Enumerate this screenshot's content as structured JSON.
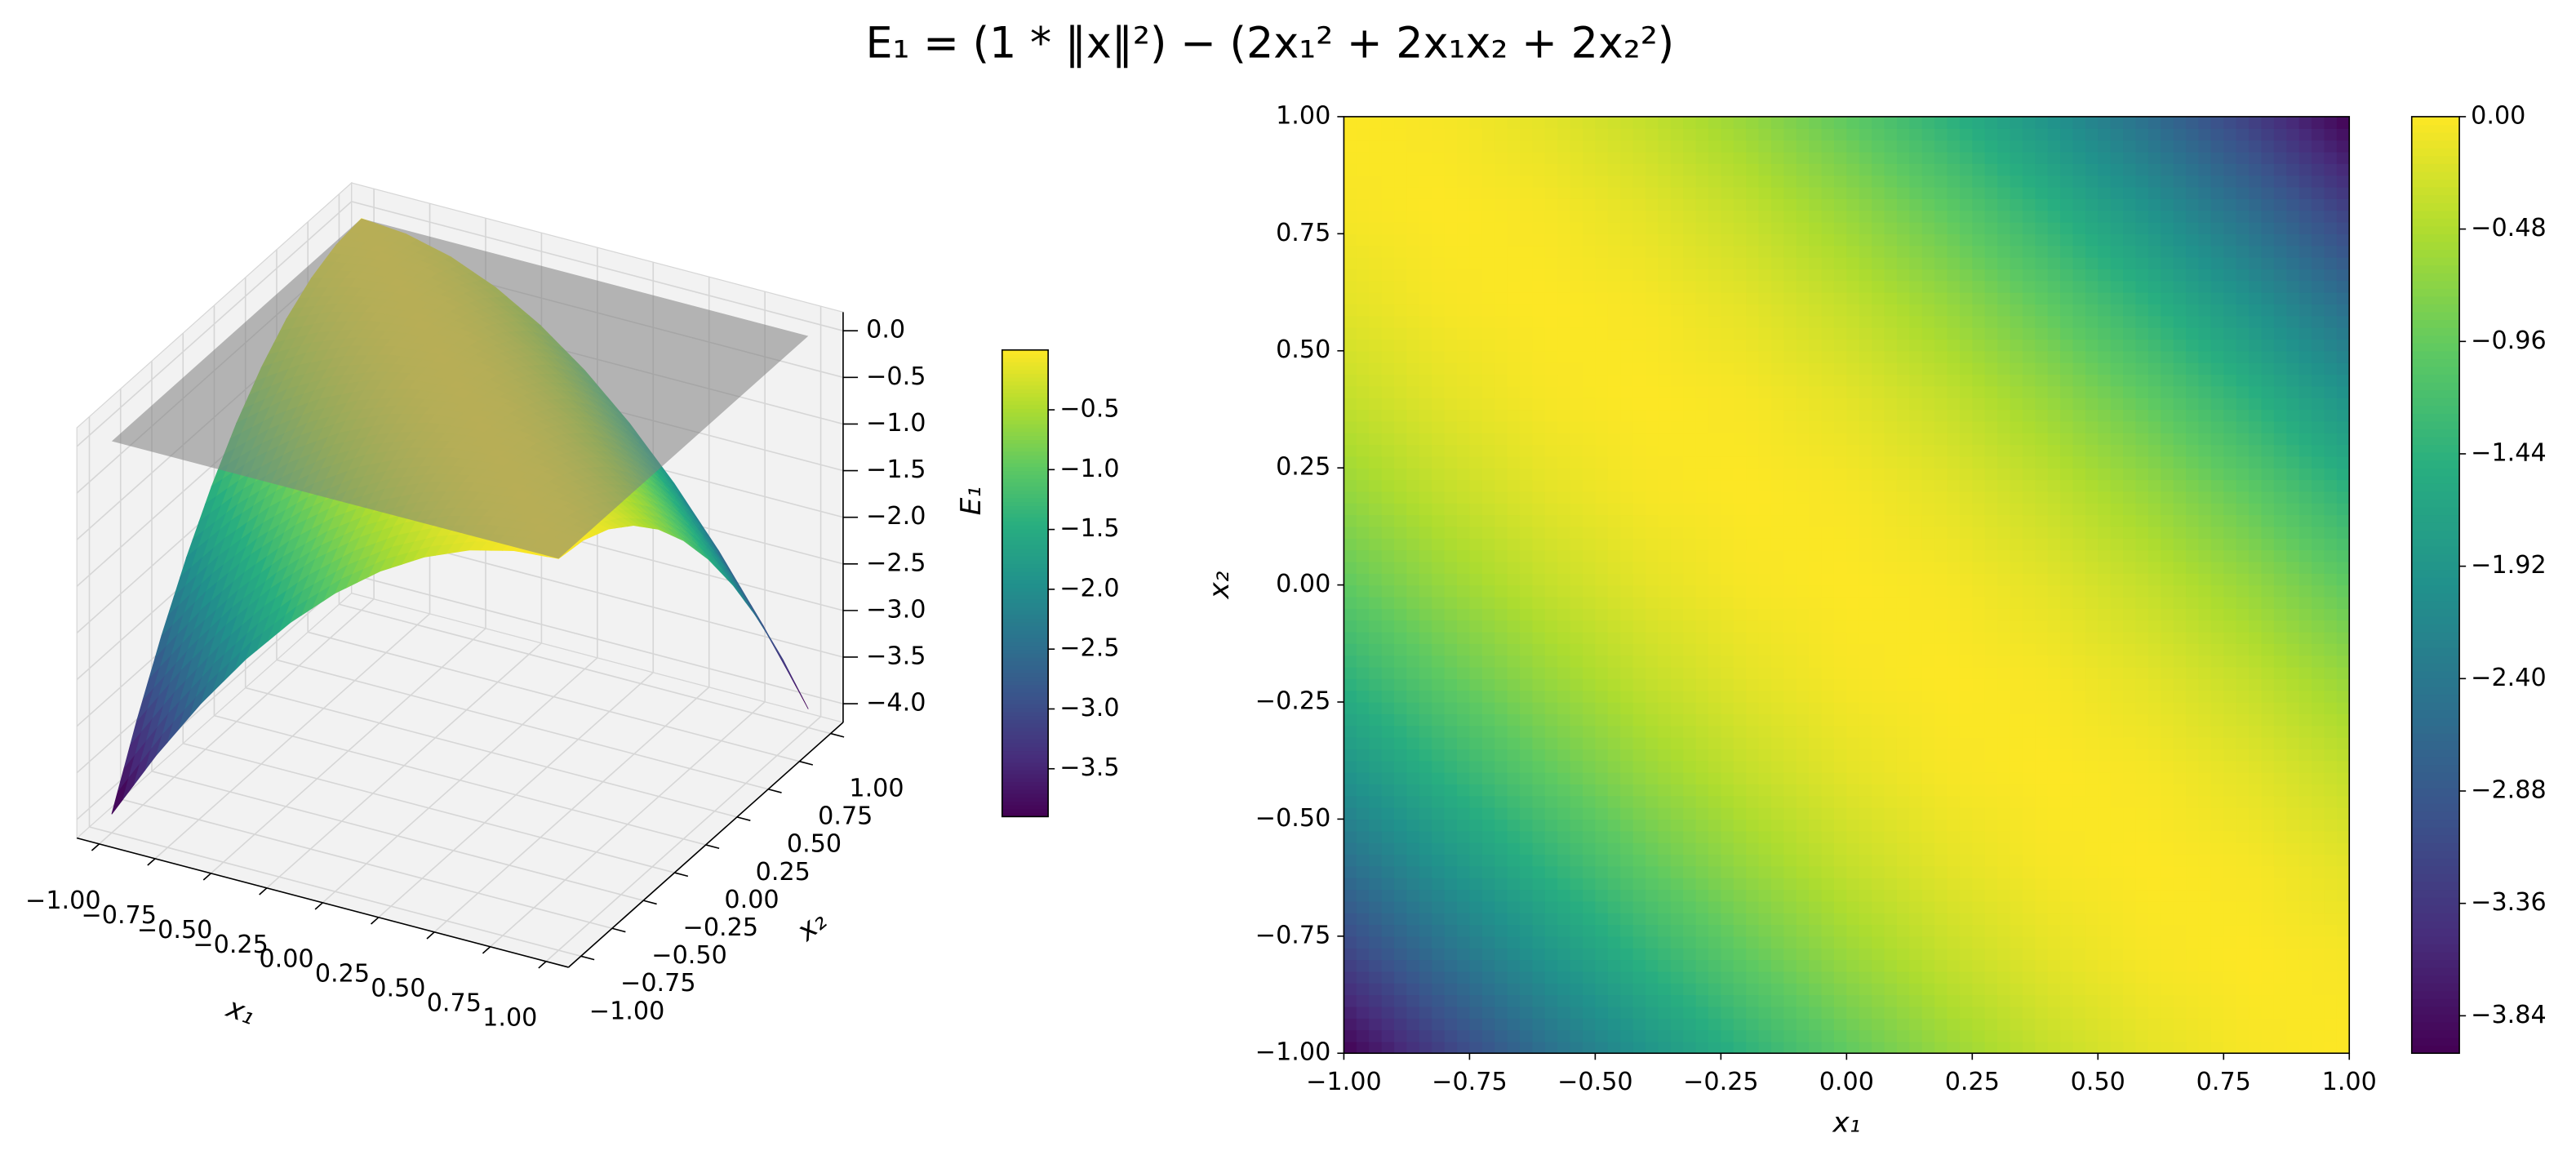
{
  "title": "E₁ = (1 * ‖x‖²) − (2x₁² + 2x₁x₂ + 2x₂²)",
  "chart_data": [
    {
      "type": "surface",
      "x": [
        -1,
        -0.8,
        -0.6,
        -0.4,
        -0.2,
        0,
        0.2,
        0.4,
        0.6,
        0.8,
        1
      ],
      "y": [
        -1,
        -0.8,
        -0.6,
        -0.4,
        -0.2,
        0,
        0.2,
        0.4,
        0.6,
        0.8,
        1
      ],
      "z": [
        [
          -4,
          -3.24,
          -2.56,
          -1.96,
          -1.44,
          -1,
          -0.64,
          -0.36,
          -0.16,
          -0.04,
          0
        ],
        [
          -3.24,
          -2.56,
          -1.96,
          -1.44,
          -1,
          -0.64,
          -0.36,
          -0.16,
          -0.04,
          0,
          -0.04
        ],
        [
          -2.56,
          -1.96,
          -1.44,
          -1,
          -0.64,
          -0.36,
          -0.16,
          -0.04,
          0,
          -0.04,
          -0.16
        ],
        [
          -1.96,
          -1.44,
          -1,
          -0.64,
          -0.36,
          -0.16,
          -0.04,
          0,
          -0.04,
          -0.16,
          -0.36
        ],
        [
          -1.44,
          -1,
          -0.64,
          -0.36,
          -0.16,
          -0.04,
          0,
          -0.04,
          -0.16,
          -0.36,
          -0.64
        ],
        [
          -1,
          -0.64,
          -0.36,
          -0.16,
          -0.04,
          0,
          -0.04,
          -0.16,
          -0.36,
          -0.64,
          -1
        ],
        [
          -0.64,
          -0.36,
          -0.16,
          -0.04,
          0,
          -0.04,
          -0.16,
          -0.36,
          -0.64,
          -1,
          -1.44
        ],
        [
          -0.36,
          -0.16,
          -0.04,
          0,
          -0.04,
          -0.16,
          -0.36,
          -0.64,
          -1,
          -1.44,
          -1.96
        ],
        [
          -0.16,
          -0.04,
          0,
          -0.04,
          -0.16,
          -0.36,
          -0.64,
          -1,
          -1.44,
          -1.96,
          -2.56
        ],
        [
          -0.04,
          0,
          -0.04,
          -0.16,
          -0.36,
          -0.64,
          -1,
          -1.44,
          -1.96,
          -2.56,
          -3.24
        ],
        [
          0,
          -0.04,
          -0.16,
          -0.36,
          -0.64,
          -1,
          -1.44,
          -1.96,
          -2.56,
          -3.24,
          -4
        ]
      ],
      "xlabel": "x₁",
      "ylabel": "x₂",
      "zlabel": "E₁",
      "xlim": [
        -1.1,
        1.1
      ],
      "ylim": [
        -1.1,
        1.1
      ],
      "zlim": [
        -4.2,
        0.2
      ],
      "xticks": [
        {
          "value": -1,
          "label": "−1.00"
        },
        {
          "value": -0.75,
          "label": "−0.75"
        },
        {
          "value": -0.5,
          "label": "−0.50"
        },
        {
          "value": -0.25,
          "label": "−0.25"
        },
        {
          "value": 0,
          "label": "0.00"
        },
        {
          "value": 0.25,
          "label": "0.25"
        },
        {
          "value": 0.5,
          "label": "0.50"
        },
        {
          "value": 0.75,
          "label": "0.75"
        },
        {
          "value": 1,
          "label": "1.00"
        }
      ],
      "yticks": [
        {
          "value": -1,
          "label": "−1.00"
        },
        {
          "value": -0.75,
          "label": "−0.75"
        },
        {
          "value": -0.5,
          "label": "−0.50"
        },
        {
          "value": -0.25,
          "label": "−0.25"
        },
        {
          "value": 0,
          "label": "0.00"
        },
        {
          "value": 0.25,
          "label": "0.25"
        },
        {
          "value": 0.5,
          "label": "0.50"
        },
        {
          "value": 0.75,
          "label": "0.75"
        },
        {
          "value": 1,
          "label": "1.00"
        }
      ],
      "zticks": [
        {
          "value": 0,
          "label": "0.0"
        },
        {
          "value": -0.5,
          "label": "−0.5"
        },
        {
          "value": -1,
          "label": "−1.0"
        },
        {
          "value": -1.5,
          "label": "−1.5"
        },
        {
          "value": -2,
          "label": "−2.0"
        },
        {
          "value": -2.5,
          "label": "−2.5"
        },
        {
          "value": -3,
          "label": "−3.0"
        },
        {
          "value": -3.5,
          "label": "−3.5"
        },
        {
          "value": -4,
          "label": "−4.0"
        }
      ],
      "colormap": "viridis",
      "clim": [
        -3.9,
        0
      ],
      "cticks": [
        {
          "value": -0.5,
          "label": "−0.5"
        },
        {
          "value": -1,
          "label": "−1.0"
        },
        {
          "value": -1.5,
          "label": "−1.5"
        },
        {
          "value": -2,
          "label": "−2.0"
        },
        {
          "value": -2.5,
          "label": "−2.5"
        },
        {
          "value": -3,
          "label": "−3.0"
        },
        {
          "value": -3.5,
          "label": "−3.5"
        }
      ],
      "plane_z": 0,
      "plane_color": "#808080"
    },
    {
      "type": "contour",
      "x": [
        -1,
        -0.8,
        -0.6,
        -0.4,
        -0.2,
        0,
        0.2,
        0.4,
        0.6,
        0.8,
        1
      ],
      "y": [
        -1,
        -0.8,
        -0.6,
        -0.4,
        -0.2,
        0,
        0.2,
        0.4,
        0.6,
        0.8,
        1
      ],
      "z": [
        [
          -4,
          -3.24,
          -2.56,
          -1.96,
          -1.44,
          -1,
          -0.64,
          -0.36,
          -0.16,
          -0.04,
          0
        ],
        [
          -3.24,
          -2.56,
          -1.96,
          -1.44,
          -1,
          -0.64,
          -0.36,
          -0.16,
          -0.04,
          0,
          -0.04
        ],
        [
          -2.56,
          -1.96,
          -1.44,
          -1,
          -0.64,
          -0.36,
          -0.16,
          -0.04,
          0,
          -0.04,
          -0.16
        ],
        [
          -1.96,
          -1.44,
          -1,
          -0.64,
          -0.36,
          -0.16,
          -0.04,
          0,
          -0.04,
          -0.16,
          -0.36
        ],
        [
          -1.44,
          -1,
          -0.64,
          -0.36,
          -0.16,
          -0.04,
          0,
          -0.04,
          -0.16,
          -0.36,
          -0.64
        ],
        [
          -1,
          -0.64,
          -0.36,
          -0.16,
          -0.04,
          0,
          -0.04,
          -0.16,
          -0.36,
          -0.64,
          -1
        ],
        [
          -0.64,
          -0.36,
          -0.16,
          -0.04,
          0,
          -0.04,
          -0.16,
          -0.36,
          -0.64,
          -1,
          -1.44
        ],
        [
          -0.36,
          -0.16,
          -0.04,
          0,
          -0.04,
          -0.16,
          -0.36,
          -0.64,
          -1,
          -1.44,
          -1.96
        ],
        [
          -0.16,
          -0.04,
          0,
          -0.04,
          -0.16,
          -0.36,
          -0.64,
          -1,
          -1.44,
          -1.96,
          -2.56
        ],
        [
          -0.04,
          0,
          -0.04,
          -0.16,
          -0.36,
          -0.64,
          -1,
          -1.44,
          -1.96,
          -2.56,
          -3.24
        ],
        [
          0,
          -0.04,
          -0.16,
          -0.36,
          -0.64,
          -1,
          -1.44,
          -1.96,
          -2.56,
          -3.24,
          -4
        ]
      ],
      "xlabel": "x₁",
      "ylabel": "x₂",
      "xlim": [
        -1,
        1
      ],
      "ylim": [
        -1,
        1
      ],
      "xticks": [
        {
          "value": -1,
          "label": "−1.00"
        },
        {
          "value": -0.75,
          "label": "−0.75"
        },
        {
          "value": -0.5,
          "label": "−0.50"
        },
        {
          "value": -0.25,
          "label": "−0.25"
        },
        {
          "value": 0,
          "label": "0.00"
        },
        {
          "value": 0.25,
          "label": "0.25"
        },
        {
          "value": 0.5,
          "label": "0.50"
        },
        {
          "value": 0.75,
          "label": "0.75"
        },
        {
          "value": 1,
          "label": "1.00"
        }
      ],
      "yticks": [
        {
          "value": -1,
          "label": "−1.00"
        },
        {
          "value": -0.75,
          "label": "−0.75"
        },
        {
          "value": -0.5,
          "label": "−0.50"
        },
        {
          "value": -0.25,
          "label": "−0.25"
        },
        {
          "value": 0,
          "label": "0.00"
        },
        {
          "value": 0.25,
          "label": "0.25"
        },
        {
          "value": 0.5,
          "label": "0.50"
        },
        {
          "value": 0.75,
          "label": "0.75"
        },
        {
          "value": 1,
          "label": "1.00"
        }
      ],
      "colormap": "viridis",
      "clim": [
        -4,
        0
      ],
      "cticks": [
        {
          "value": 0,
          "label": "0.00"
        },
        {
          "value": -0.48,
          "label": "−0.48"
        },
        {
          "value": -0.96,
          "label": "−0.96"
        },
        {
          "value": -1.44,
          "label": "−1.44"
        },
        {
          "value": -1.92,
          "label": "−1.92"
        },
        {
          "value": -2.4,
          "label": "−2.40"
        },
        {
          "value": -2.88,
          "label": "−2.88"
        },
        {
          "value": -3.36,
          "label": "−3.36"
        },
        {
          "value": -3.84,
          "label": "−3.84"
        }
      ]
    }
  ]
}
